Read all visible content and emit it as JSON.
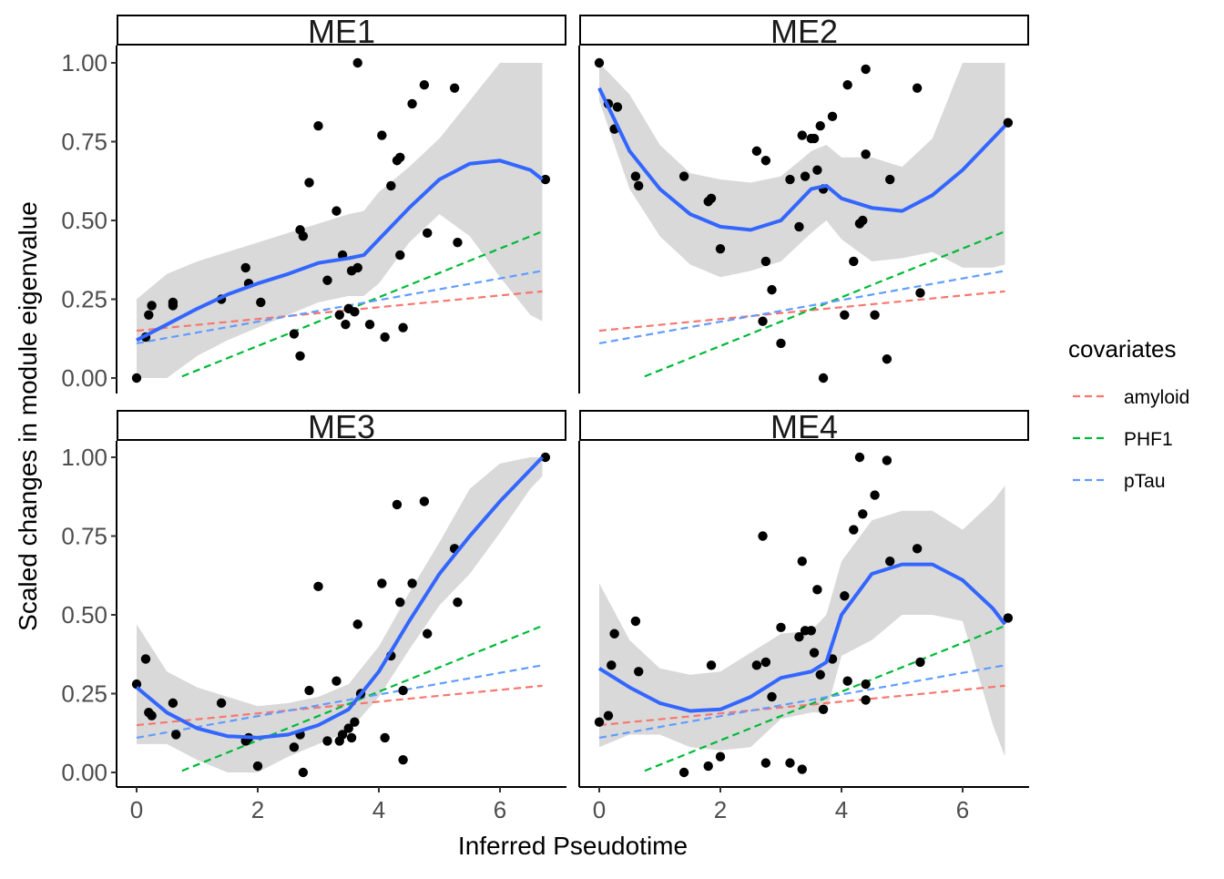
{
  "chart_data": {
    "type": "scatter",
    "facets": [
      "ME1",
      "ME2",
      "ME3",
      "ME4"
    ],
    "xlabel": "Inferred Pseudotime",
    "ylabel": "Scaled changes in module eigenvalue",
    "xlim": [
      -0.3,
      7.0
    ],
    "ylim": [
      -0.05,
      1.05
    ],
    "x_ticks": [
      0,
      2,
      4,
      6
    ],
    "x_tick_labels": [
      "0",
      "2",
      "4",
      "6"
    ],
    "y_ticks": [
      0,
      0.25,
      0.5,
      0.75,
      1.0
    ],
    "y_tick_labels": [
      "0.00",
      "0.25",
      "0.50",
      "0.75",
      "1.00"
    ],
    "legend": {
      "title": "covariates",
      "position": "right",
      "entries": [
        {
          "name": "amyloid",
          "color": "#F8766D"
        },
        {
          "name": "PHF1",
          "color": "#00BA38"
        },
        {
          "name": "pTau",
          "color": "#619CFF"
        }
      ]
    },
    "covariate_lines": {
      "amyloid": {
        "x": [
          0,
          6.7
        ],
        "y": [
          0.15,
          0.275
        ]
      },
      "PHF1": {
        "x": [
          0.75,
          6.7
        ],
        "y": [
          0.005,
          0.465
        ]
      },
      "pTau": {
        "x": [
          0,
          6.7
        ],
        "y": [
          0.11,
          0.34
        ]
      }
    },
    "colors": {
      "points": "#000000",
      "smooth": "#3366FF",
      "ribbon": "#d9d9d9",
      "axis": "#000000",
      "tick_label": "#4d4d4d"
    },
    "panels": [
      {
        "label": "ME1",
        "points": [
          [
            0,
            0.0
          ],
          [
            0.2,
            0.2
          ],
          [
            0.15,
            0.13
          ],
          [
            0.25,
            0.23
          ],
          [
            0.6,
            0.23
          ],
          [
            0.6,
            0.24
          ],
          [
            1.4,
            0.25
          ],
          [
            1.8,
            0.35
          ],
          [
            1.85,
            0.3
          ],
          [
            2.05,
            0.24
          ],
          [
            2.6,
            0.14
          ],
          [
            2.7,
            0.47
          ],
          [
            2.75,
            0.45
          ],
          [
            2.7,
            0.07
          ],
          [
            2.85,
            0.62
          ],
          [
            3.0,
            0.8
          ],
          [
            3.15,
            0.31
          ],
          [
            3.3,
            0.53
          ],
          [
            3.35,
            0.2
          ],
          [
            3.4,
            0.39
          ],
          [
            3.45,
            0.17
          ],
          [
            3.5,
            0.22
          ],
          [
            3.55,
            0.34
          ],
          [
            3.6,
            0.21
          ],
          [
            3.65,
            0.35
          ],
          [
            3.65,
            1.0
          ],
          [
            3.85,
            0.17
          ],
          [
            4.05,
            0.77
          ],
          [
            4.1,
            0.13
          ],
          [
            4.2,
            0.61
          ],
          [
            4.3,
            0.69
          ],
          [
            4.35,
            0.7
          ],
          [
            4.35,
            0.39
          ],
          [
            4.4,
            0.16
          ],
          [
            4.55,
            0.87
          ],
          [
            4.75,
            0.93
          ],
          [
            4.8,
            0.46
          ],
          [
            5.25,
            0.92
          ],
          [
            5.3,
            0.43
          ],
          [
            6.75,
            0.63
          ]
        ],
        "smooth": {
          "x": [
            0,
            0.5,
            1,
            1.5,
            2,
            2.5,
            3,
            3.5,
            3.75,
            4,
            4.5,
            5,
            5.5,
            6,
            6.5,
            6.7
          ],
          "y": [
            0.12,
            0.17,
            0.22,
            0.265,
            0.3,
            0.33,
            0.365,
            0.38,
            0.39,
            0.44,
            0.54,
            0.63,
            0.68,
            0.69,
            0.66,
            0.63
          ],
          "lower": [
            0.0,
            0.0,
            0.07,
            0.12,
            0.16,
            0.2,
            0.24,
            0.26,
            0.26,
            0.3,
            0.43,
            0.52,
            0.45,
            0.32,
            0.2,
            0.18
          ],
          "upper": [
            0.25,
            0.33,
            0.37,
            0.4,
            0.43,
            0.46,
            0.49,
            0.52,
            0.53,
            0.59,
            0.67,
            0.76,
            0.88,
            1.0,
            1.0,
            1.0
          ]
        }
      },
      {
        "label": "ME2",
        "points": [
          [
            0,
            1.0
          ],
          [
            0.15,
            0.87
          ],
          [
            0.25,
            0.79
          ],
          [
            0.3,
            0.86
          ],
          [
            0.6,
            0.64
          ],
          [
            0.65,
            0.61
          ],
          [
            1.4,
            0.64
          ],
          [
            1.8,
            0.56
          ],
          [
            1.85,
            0.57
          ],
          [
            2.0,
            0.41
          ],
          [
            2.6,
            0.72
          ],
          [
            2.7,
            0.18
          ],
          [
            2.75,
            0.37
          ],
          [
            2.75,
            0.69
          ],
          [
            2.85,
            0.28
          ],
          [
            3.0,
            0.11
          ],
          [
            3.15,
            0.63
          ],
          [
            3.3,
            0.48
          ],
          [
            3.35,
            0.77
          ],
          [
            3.4,
            0.64
          ],
          [
            3.5,
            0.76
          ],
          [
            3.55,
            0.76
          ],
          [
            3.6,
            0.66
          ],
          [
            3.65,
            0.8
          ],
          [
            3.7,
            0.6
          ],
          [
            3.7,
            0.0
          ],
          [
            3.85,
            0.83
          ],
          [
            4.05,
            0.2
          ],
          [
            4.1,
            0.93
          ],
          [
            4.2,
            0.37
          ],
          [
            4.3,
            0.49
          ],
          [
            4.35,
            0.5
          ],
          [
            4.4,
            0.71
          ],
          [
            4.4,
            0.98
          ],
          [
            4.55,
            0.2
          ],
          [
            4.75,
            0.06
          ],
          [
            4.8,
            0.63
          ],
          [
            5.25,
            0.92
          ],
          [
            5.3,
            0.27
          ],
          [
            6.75,
            0.81
          ]
        ],
        "smooth": {
          "x": [
            0,
            0.5,
            1,
            1.5,
            2,
            2.5,
            3,
            3.5,
            3.75,
            4,
            4.5,
            5,
            5.5,
            6,
            6.5,
            6.7
          ],
          "y": [
            0.92,
            0.72,
            0.6,
            0.52,
            0.48,
            0.47,
            0.5,
            0.6,
            0.61,
            0.57,
            0.54,
            0.53,
            0.58,
            0.66,
            0.76,
            0.8
          ],
          "lower": [
            0.88,
            0.6,
            0.45,
            0.36,
            0.32,
            0.34,
            0.37,
            0.46,
            0.5,
            0.44,
            0.37,
            0.38,
            0.4,
            0.35,
            0.35,
            0.36
          ],
          "upper": [
            1.0,
            0.9,
            0.74,
            0.65,
            0.63,
            0.62,
            0.64,
            0.72,
            0.74,
            0.7,
            0.7,
            0.67,
            0.76,
            1.0,
            1.0,
            1.0
          ]
        }
      },
      {
        "label": "ME3",
        "points": [
          [
            0,
            0.28
          ],
          [
            0.15,
            0.36
          ],
          [
            0.2,
            0.19
          ],
          [
            0.25,
            0.18
          ],
          [
            0.6,
            0.22
          ],
          [
            0.65,
            0.12
          ],
          [
            1.4,
            0.22
          ],
          [
            1.8,
            0.1
          ],
          [
            1.85,
            0.11
          ],
          [
            2.0,
            0.02
          ],
          [
            2.6,
            0.08
          ],
          [
            2.7,
            0.12
          ],
          [
            2.75,
            0.0
          ],
          [
            2.85,
            0.26
          ],
          [
            3.0,
            0.59
          ],
          [
            3.15,
            0.1
          ],
          [
            3.3,
            0.29
          ],
          [
            3.35,
            0.1
          ],
          [
            3.4,
            0.12
          ],
          [
            3.5,
            0.14
          ],
          [
            3.55,
            0.11
          ],
          [
            3.6,
            0.16
          ],
          [
            3.65,
            0.47
          ],
          [
            3.7,
            0.25
          ],
          [
            4.05,
            0.6
          ],
          [
            4.1,
            0.11
          ],
          [
            4.2,
            0.37
          ],
          [
            4.3,
            0.85
          ],
          [
            4.35,
            0.54
          ],
          [
            4.4,
            0.26
          ],
          [
            4.4,
            0.04
          ],
          [
            4.55,
            0.6
          ],
          [
            4.75,
            0.86
          ],
          [
            4.8,
            0.44
          ],
          [
            5.25,
            0.71
          ],
          [
            5.3,
            0.54
          ],
          [
            6.75,
            1.0
          ]
        ],
        "smooth": {
          "x": [
            0,
            0.5,
            1,
            1.5,
            2,
            2.5,
            3,
            3.5,
            4,
            4.5,
            5,
            5.5,
            6,
            6.5,
            6.7
          ],
          "y": [
            0.27,
            0.19,
            0.14,
            0.115,
            0.11,
            0.12,
            0.15,
            0.2,
            0.32,
            0.48,
            0.63,
            0.75,
            0.86,
            0.96,
            1.0
          ],
          "lower": [
            0.09,
            0.09,
            0.04,
            0.0,
            0.0,
            0.05,
            0.09,
            0.13,
            0.24,
            0.39,
            0.53,
            0.63,
            0.76,
            0.9,
            0.94
          ],
          "upper": [
            0.47,
            0.32,
            0.27,
            0.24,
            0.21,
            0.22,
            0.24,
            0.28,
            0.4,
            0.57,
            0.73,
            0.9,
            0.98,
            1.0,
            1.0
          ]
        }
      },
      {
        "label": "ME4",
        "points": [
          [
            0,
            0.16
          ],
          [
            0.15,
            0.18
          ],
          [
            0.2,
            0.34
          ],
          [
            0.25,
            0.44
          ],
          [
            0.6,
            0.48
          ],
          [
            0.65,
            0.32
          ],
          [
            1.4,
            0.0
          ],
          [
            1.8,
            0.02
          ],
          [
            1.85,
            0.34
          ],
          [
            2.0,
            0.05
          ],
          [
            2.6,
            0.34
          ],
          [
            2.7,
            0.75
          ],
          [
            2.75,
            0.03
          ],
          [
            2.75,
            0.35
          ],
          [
            2.85,
            0.24
          ],
          [
            3.0,
            0.46
          ],
          [
            3.15,
            0.03
          ],
          [
            3.3,
            0.43
          ],
          [
            3.35,
            0.01
          ],
          [
            3.35,
            0.67
          ],
          [
            3.4,
            0.45
          ],
          [
            3.5,
            0.45
          ],
          [
            3.55,
            0.38
          ],
          [
            3.6,
            0.58
          ],
          [
            3.65,
            0.31
          ],
          [
            3.7,
            0.2
          ],
          [
            3.85,
            0.36
          ],
          [
            4.05,
            0.56
          ],
          [
            4.1,
            0.29
          ],
          [
            4.2,
            0.77
          ],
          [
            4.3,
            1.0
          ],
          [
            4.35,
            0.82
          ],
          [
            4.4,
            0.28
          ],
          [
            4.4,
            0.23
          ],
          [
            4.55,
            0.88
          ],
          [
            4.75,
            0.99
          ],
          [
            4.8,
            0.67
          ],
          [
            5.25,
            0.71
          ],
          [
            5.3,
            0.35
          ],
          [
            6.75,
            0.49
          ]
        ],
        "smooth": {
          "x": [
            0,
            0.5,
            1,
            1.5,
            2,
            2.5,
            3,
            3.5,
            3.75,
            4,
            4.5,
            5,
            5.5,
            6,
            6.5,
            6.7
          ],
          "y": [
            0.33,
            0.27,
            0.22,
            0.195,
            0.2,
            0.24,
            0.3,
            0.32,
            0.35,
            0.5,
            0.63,
            0.66,
            0.66,
            0.61,
            0.52,
            0.47
          ],
          "lower": [
            0.08,
            0.12,
            0.12,
            0.08,
            0.07,
            0.08,
            0.17,
            0.19,
            0.19,
            0.37,
            0.42,
            0.5,
            0.5,
            0.48,
            0.15,
            0.05
          ],
          "upper": [
            0.6,
            0.42,
            0.33,
            0.31,
            0.32,
            0.38,
            0.44,
            0.45,
            0.5,
            0.67,
            0.8,
            0.83,
            0.83,
            0.77,
            0.86,
            0.91
          ]
        }
      }
    ]
  }
}
